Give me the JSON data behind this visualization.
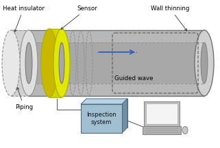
{
  "bg_color": "#ffffff",
  "pipe_color": "#b8b8b8",
  "pipe_edge": "#707070",
  "pipe_inner_color": "#a8a8a8",
  "insulator_face_color": "#e0e0e0",
  "insulator_body_color": "#d0d0d0",
  "insulator_edge": "#909090",
  "sensor_color": "#d4d400",
  "sensor_face_color": "#e0e800",
  "sensor_edge_color": "#b0b000",
  "inspection_box_color": "#a0bfd0",
  "inspection_box_top": "#b8d4e4",
  "inspection_box_side": "#7090a8",
  "inspection_box_edge": "#506878",
  "laptop_body": "#c0c0c0",
  "laptop_screen_bg": "#e8e8e8",
  "laptop_screen_inner": "#f4f4f4",
  "laptop_base": "#b0b0b0",
  "arrow_color": "#3060c0",
  "line_color": "#606060",
  "text_color": "#000000",
  "dashed_color": "#666666",
  "labels": {
    "heat_insulator": "Heat insulator",
    "sensor": "Sensor",
    "wall_thinning": "Wall thinning",
    "piping": "Piping",
    "guided_wave": "Guided wave",
    "inspection_system": "Inspection\nsystem"
  },
  "fig_width": 3.21,
  "fig_height": 2.16,
  "dpi": 100
}
